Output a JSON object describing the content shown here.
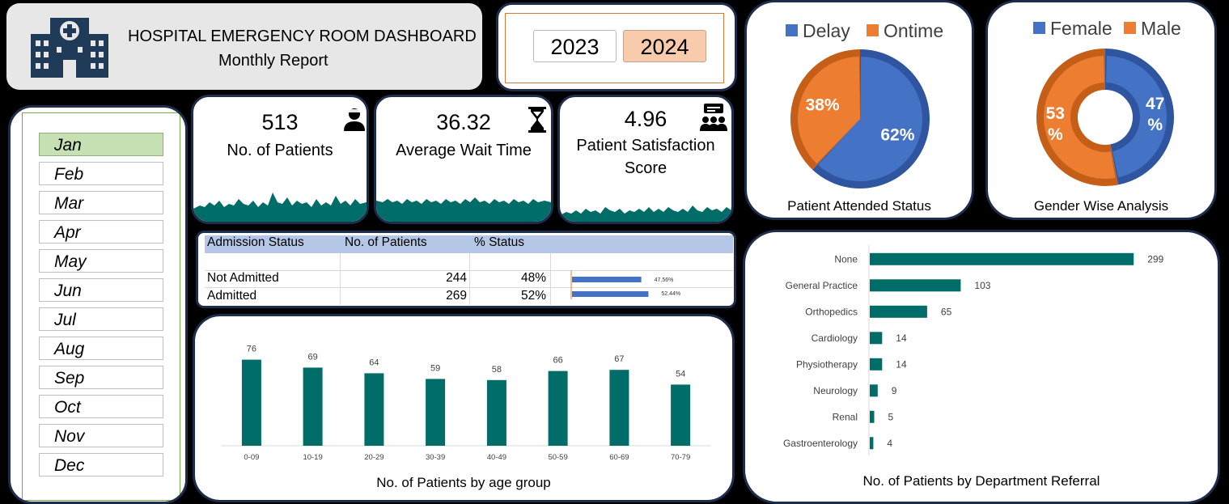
{
  "header": {
    "title": "HOSPITAL EMERGENCY ROOM DASHBOARD",
    "subtitle": "Monthly Report"
  },
  "years": {
    "options": [
      "2023",
      "2024"
    ],
    "selected": "2024"
  },
  "months": {
    "items": [
      "Jan",
      "Feb",
      "Mar",
      "Apr",
      "May",
      "Jun",
      "Jul",
      "Aug",
      "Sep",
      "Oct",
      "Nov",
      "Dec"
    ],
    "selected": "Jan"
  },
  "kpis": {
    "patients": {
      "value": "513",
      "label": "No. of Patients"
    },
    "wait": {
      "value": "36.32",
      "label": "Average Wait Time"
    },
    "satisfaction": {
      "value": "4.96",
      "label_line1": "Patient Satisfaction",
      "label_line2": "Score"
    }
  },
  "colors": {
    "teal": "#006d68",
    "blue": "#4472c4",
    "orange": "#ed7d31",
    "navy": "#1f2d4d"
  },
  "admission": {
    "headers": [
      "Admission Status",
      "No. of Patients",
      "% Status"
    ],
    "rows": [
      {
        "status": "Not Admitted",
        "count": "244",
        "pct": "48%",
        "bar_pct": 47.56,
        "bar_label": "47.56%"
      },
      {
        "status": "Admitted",
        "count": "269",
        "pct": "52%",
        "bar_pct": 52.44,
        "bar_label": "52.44%"
      }
    ]
  },
  "chart_data": [
    {
      "type": "pie",
      "title": "Patient Attended Status",
      "legend_position": "top",
      "slices": [
        {
          "name": "Delay",
          "value": 62,
          "label": "62%",
          "color": "#4472c4"
        },
        {
          "name": "Ontime",
          "value": 38,
          "label": "38%",
          "color": "#ed7d31"
        }
      ]
    },
    {
      "type": "pie",
      "title": "Gender Wise Analysis",
      "legend_position": "top",
      "slices": [
        {
          "name": "Female",
          "value": 47,
          "label_line1": "47",
          "label_line2": "%",
          "color": "#4472c4"
        },
        {
          "name": "Male",
          "value": 53,
          "label_line1": "53",
          "label_line2": "%",
          "color": "#ed7d31"
        }
      ]
    },
    {
      "type": "bar",
      "title": "No. of Patients by age group",
      "categories": [
        "0-09",
        "10-19",
        "20-29",
        "30-39",
        "40-49",
        "50-59",
        "60-69",
        "70-79"
      ],
      "values": [
        76,
        69,
        64,
        59,
        58,
        66,
        67,
        54
      ],
      "labels": [
        "76",
        "69",
        "64",
        "59",
        "58",
        "66",
        "67",
        "54"
      ],
      "ylim": [
        0,
        100
      ],
      "grid": false
    },
    {
      "type": "bar",
      "orientation": "horizontal",
      "title": "No. of Patients by Department Referral",
      "categories": [
        "None",
        "General Practice",
        "Orthopedics",
        "Cardiology",
        "Physiotherapy",
        "Neurology",
        "Renal",
        "Gastroenterology"
      ],
      "values": [
        299,
        103,
        65,
        14,
        14,
        9,
        5,
        4
      ],
      "labels": [
        "299",
        "103",
        "65",
        "14",
        "14",
        "9",
        "5",
        "4"
      ],
      "xlim": [
        0,
        330
      ],
      "grid": false
    }
  ]
}
